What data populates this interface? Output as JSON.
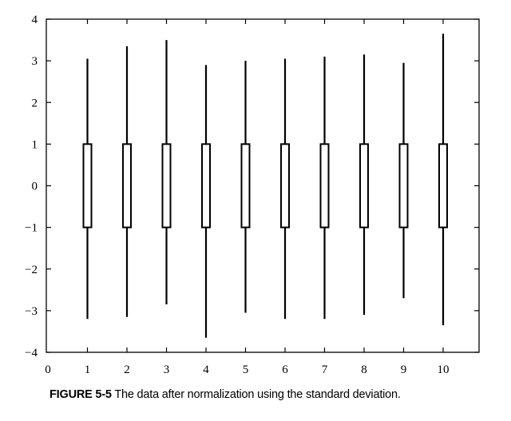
{
  "chart_data": {
    "type": "boxplot",
    "title": "",
    "xlabel": "",
    "ylabel": "",
    "xlim": [
      0,
      11
    ],
    "ylim": [
      -4,
      4
    ],
    "x_ticks": [
      0,
      1,
      2,
      3,
      4,
      5,
      6,
      7,
      8,
      9,
      10
    ],
    "y_ticks": [
      4,
      3,
      2,
      1,
      0,
      -1,
      -2,
      -3,
      -4
    ],
    "y_tick_labels": [
      "4",
      "3",
      "2",
      "1",
      "0",
      "−1",
      "−2",
      "−3",
      "−4"
    ],
    "grid": false,
    "legend": "none",
    "boxes": [
      {
        "x": 1,
        "min": -3.2,
        "q1": -1,
        "q3": 1,
        "max": 3.05
      },
      {
        "x": 2,
        "min": -3.15,
        "q1": -1,
        "q3": 1,
        "max": 3.35
      },
      {
        "x": 3,
        "min": -2.85,
        "q1": -1,
        "q3": 1,
        "max": 3.5
      },
      {
        "x": 4,
        "min": -3.65,
        "q1": -1,
        "q3": 1,
        "max": 2.9
      },
      {
        "x": 5,
        "min": -3.05,
        "q1": -1,
        "q3": 1,
        "max": 3.0
      },
      {
        "x": 6,
        "min": -3.2,
        "q1": -1,
        "q3": 1,
        "max": 3.05
      },
      {
        "x": 7,
        "min": -3.2,
        "q1": -1,
        "q3": 1,
        "max": 3.1
      },
      {
        "x": 8,
        "min": -3.1,
        "q1": -1,
        "q3": 1,
        "max": 3.15
      },
      {
        "x": 9,
        "min": -2.7,
        "q1": -1,
        "q3": 1,
        "max": 2.95
      },
      {
        "x": 10,
        "min": -3.35,
        "q1": -1,
        "q3": 1,
        "max": 3.65
      }
    ]
  },
  "caption": {
    "label": "FIGURE 5-5",
    "text": "The data after normalization using the standard deviation."
  },
  "colors": {
    "ink": "#000000",
    "background": "#ffffff"
  }
}
